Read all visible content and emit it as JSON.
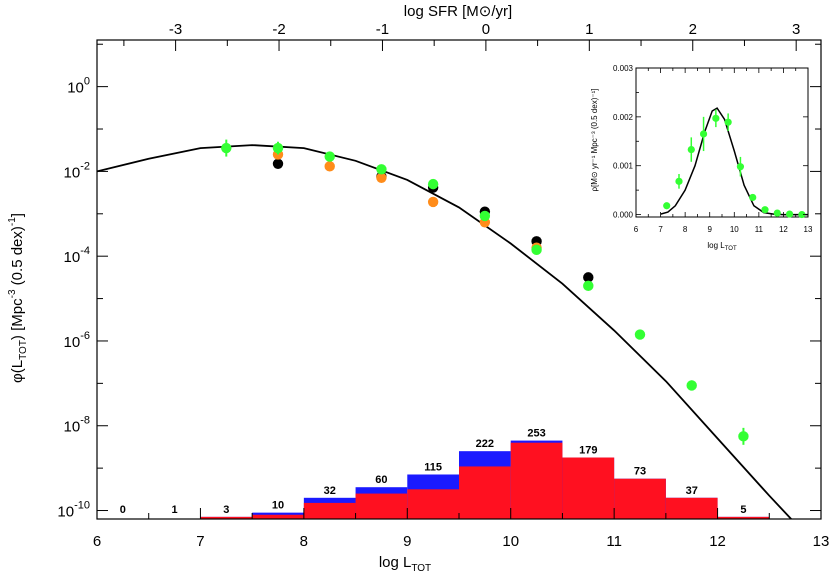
{
  "chart_data": [
    {
      "type": "scatter",
      "title": "",
      "xlabel": "log L",
      "xlabel_sub": "TOT",
      "ylabel": "φ(L",
      "ylabel_sub": "TOT",
      "ylabel_tail": ") [Mpc",
      "ylabel_sup": "-3",
      "ylabel_end": " (0.5 dex)",
      "ylabel_sup2": "-1",
      "ylabel_close": "]",
      "top_axis_label": "log SFR [M⊙/yr]",
      "xlim": [
        6,
        13
      ],
      "ylim_log10": [
        -10.2,
        1.1
      ],
      "top_axis_offset": -9.76,
      "xticks": [
        "6",
        "7",
        "8",
        "9",
        "10",
        "11",
        "12",
        "13"
      ],
      "yticks_base": [
        "10",
        "10",
        "10",
        "10",
        "10",
        "10"
      ],
      "yticks_exp": [
        "0",
        "-2",
        "-4",
        "-6",
        "-8",
        "-10"
      ],
      "yticks_val": [
        0,
        -2,
        -4,
        -6,
        -8,
        -10
      ],
      "top_ticks": [
        "-3",
        "-2",
        "-1",
        "0",
        "1",
        "2",
        "3"
      ],
      "top_ticks_val": [
        -3,
        -2,
        -1,
        0,
        1,
        2,
        3
      ],
      "fit_curve": {
        "name": "fit",
        "color": "#000000",
        "x": [
          6.0,
          6.5,
          7.0,
          7.5,
          8.0,
          8.5,
          9.0,
          9.5,
          10.0,
          10.5,
          11.0,
          11.5,
          12.0,
          12.5,
          12.75
        ],
        "log_y": [
          -2.0,
          -1.7,
          -1.45,
          -1.38,
          -1.45,
          -1.75,
          -2.2,
          -2.85,
          -3.7,
          -4.65,
          -5.75,
          -6.95,
          -8.3,
          -9.65,
          -10.3
        ]
      },
      "series": [
        {
          "name": "green",
          "color": "#33ff33",
          "x": [
            7.25,
            7.75,
            8.25,
            8.75,
            9.25,
            9.75,
            10.25,
            10.75,
            11.25,
            11.75,
            12.25
          ],
          "log_y": [
            -1.45,
            -1.45,
            -1.65,
            -1.95,
            -2.3,
            -3.05,
            -3.85,
            -4.7,
            -5.85,
            -7.05,
            -8.25
          ],
          "err_up": [
            0.2,
            0.15,
            0.1,
            0.1,
            0.1,
            0.1,
            0.1,
            0.1,
            0.1,
            0.12,
            0.2
          ],
          "err_dn": [
            0.2,
            0.15,
            0.1,
            0.1,
            0.1,
            0.1,
            0.1,
            0.1,
            0.1,
            0.12,
            0.2
          ]
        },
        {
          "name": "black",
          "color": "#000000",
          "x": [
            7.75,
            8.75,
            9.25,
            9.75,
            10.25,
            10.75
          ],
          "log_y": [
            -1.82,
            -2.12,
            -2.38,
            -2.95,
            -3.65,
            -4.5
          ]
        },
        {
          "name": "orange",
          "color": "#ff8c1a",
          "x": [
            7.75,
            8.25,
            8.75,
            9.25,
            9.75,
            10.25
          ],
          "log_y": [
            -1.6,
            -1.88,
            -2.15,
            -2.72,
            -3.2,
            -3.8
          ]
        }
      ],
      "histogram": {
        "bin_edges": [
          6.0,
          6.5,
          7.0,
          7.5,
          8.0,
          8.5,
          9.0,
          9.5,
          10.0,
          10.5,
          11.0,
          11.5,
          12.0,
          12.5
        ],
        "counts": [
          "0",
          "1",
          "3",
          "10",
          "32",
          "60",
          "115",
          "222",
          "253",
          "179",
          "73",
          "37",
          "5"
        ],
        "blue_log_y": [
          -10.2,
          -10.19,
          -10.15,
          -10.05,
          -9.7,
          -9.45,
          -9.15,
          -8.6,
          -8.35,
          -8.75,
          -9.25,
          -9.7,
          -10.15
        ],
        "red_log_y": [
          -10.2,
          -10.2,
          -10.15,
          -10.1,
          -9.82,
          -9.6,
          -9.5,
          -8.96,
          -8.4,
          -8.75,
          -9.25,
          -9.7,
          -10.15
        ],
        "red_color": "#ff1020",
        "blue_color": "#1a1aff"
      }
    },
    {
      "type": "line",
      "name": "inset",
      "xlabel": "log L",
      "xlabel_sub": "TOT",
      "ylabel": "ρ[M⊙ yr⁻¹ Mpc⁻³ (0.5 dex)⁻¹]",
      "xlim": [
        6,
        13
      ],
      "ylim": [
        -5e-05,
        0.003
      ],
      "xticks": [
        "6",
        "7",
        "8",
        "9",
        "10",
        "11",
        "12",
        "13"
      ],
      "yticks": [
        "0.000",
        "0.001",
        "0.002",
        "0.003"
      ],
      "yticks_val": [
        0,
        0.001,
        0.002,
        0.003
      ],
      "curve": {
        "x": [
          7.0,
          7.3,
          7.6,
          8.0,
          8.4,
          8.8,
          9.1,
          9.3,
          9.6,
          10.0,
          10.4,
          10.8,
          11.2,
          11.6,
          12.0,
          12.5,
          13.0
        ],
        "y": [
          1e-05,
          5e-05,
          0.00018,
          0.0005,
          0.001,
          0.0017,
          0.00212,
          0.00218,
          0.00195,
          0.0013,
          0.0006,
          0.00018,
          4e-05,
          1e-05,
          0.0,
          0.0,
          0.0
        ]
      },
      "points": {
        "x": [
          7.25,
          7.75,
          8.25,
          8.75,
          9.25,
          9.75,
          10.25,
          10.75,
          11.25,
          11.75,
          12.25,
          12.75
        ],
        "y": [
          0.00018,
          0.00068,
          0.00133,
          0.00165,
          0.00197,
          0.00189,
          0.00098,
          0.00035,
          0.0001,
          3e-05,
          1e-05,
          0.0
        ],
        "err": [
          5e-05,
          0.00015,
          0.00025,
          0.00035,
          0.00018,
          0.00018,
          0.0002,
          5e-05,
          3e-05,
          2e-05,
          1e-05,
          1e-05
        ]
      }
    }
  ]
}
